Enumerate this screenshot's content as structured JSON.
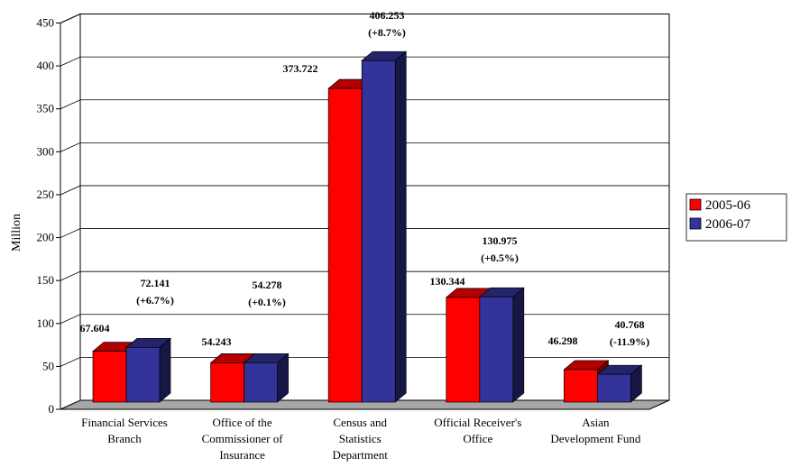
{
  "chart_data": {
    "type": "bar",
    "ylabel": "Million",
    "ylim": [
      0,
      450
    ],
    "yticks": [
      0,
      50,
      100,
      150,
      200,
      250,
      300,
      350,
      400,
      450
    ],
    "grid": true,
    "legend_position": "right",
    "categories": [
      [
        "Financial Services",
        "Branch"
      ],
      [
        "Office of the",
        "Commissioner of",
        "Insurance"
      ],
      [
        "Census and",
        "Statistics",
        "Department"
      ],
      [
        "Official Receiver's",
        "Office"
      ],
      [
        "Asian",
        "Development Fund"
      ]
    ],
    "series": [
      {
        "name": "2005-06",
        "color": "#ff0000",
        "values": [
          67.604,
          54.243,
          373.722,
          130.344,
          46.298
        ],
        "labels": [
          [
            "67.604"
          ],
          [
            "54.243"
          ],
          [
            "373.722"
          ],
          [
            "130.344"
          ],
          [
            "46.298"
          ]
        ]
      },
      {
        "name": "2006-07",
        "color": "#333399",
        "values": [
          72.141,
          54.278,
          406.253,
          130.975,
          40.768
        ],
        "labels": [
          [
            "72.141",
            "(+6.7%)"
          ],
          [
            "54.278",
            "(+0.1%)"
          ],
          [
            "406.253",
            "(+8.7%)"
          ],
          [
            "130.975",
            "(+0.5%)"
          ],
          [
            "40.768",
            "(-11.9%)"
          ]
        ]
      }
    ]
  }
}
